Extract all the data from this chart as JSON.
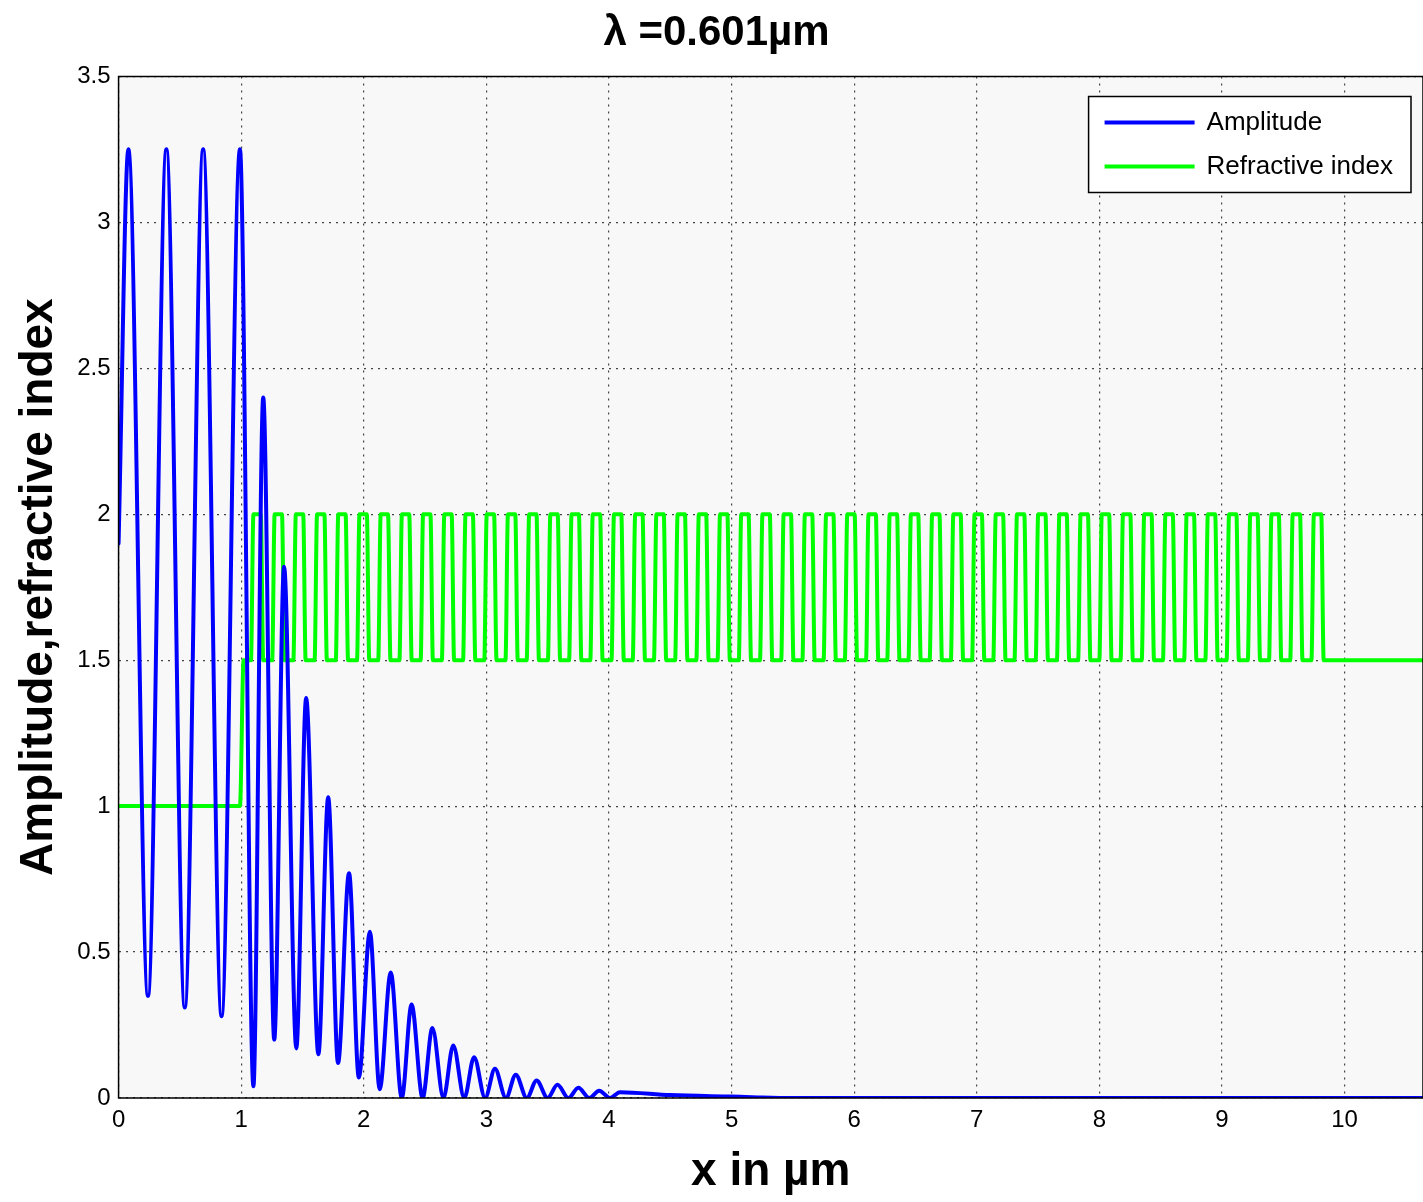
{
  "chart_data": {
    "type": "line",
    "title": "λ =0.601µm",
    "xlabel": "x in µm",
    "ylabel": "Amplitude,refractive index",
    "xlim": [
      0,
      10.64
    ],
    "xticks": [
      0,
      1,
      2,
      3,
      4,
      5,
      6,
      7,
      8,
      9,
      10
    ],
    "ylim": [
      0,
      3.5
    ],
    "yticks": [
      0,
      0.5,
      1,
      1.5,
      2,
      2.5,
      3,
      3.5
    ],
    "grid": true,
    "legend": "top right",
    "line_style": "solid",
    "marker": "none",
    "series": [
      {
        "name": "Amplitude",
        "color": "#0000ff",
        "x": [
          0,
          0.08,
          0.24,
          0.39,
          0.54,
          0.69,
          0.84,
          0.99,
          1.1,
          1.18,
          1.27,
          1.35,
          1.45,
          1.53,
          1.63,
          1.71,
          1.79,
          1.88,
          1.96,
          2.05,
          2.13,
          2.22,
          2.31,
          2.39,
          2.48,
          2.56,
          2.65,
          2.73,
          2.82,
          2.9,
          2.99,
          3.07,
          3.16,
          3.24,
          3.33,
          3.41,
          3.5,
          3.58,
          3.67,
          3.75,
          3.84,
          3.92,
          4.01,
          4.09,
          4.5,
          5,
          5.5,
          10.64
        ],
        "values": [
          1.9,
          3.25,
          0.35,
          3.25,
          0.31,
          3.25,
          0.28,
          3.25,
          0.04,
          2.4,
          0.2,
          1.82,
          0.17,
          1.37,
          0.15,
          1.03,
          0.12,
          0.77,
          0.07,
          0.57,
          0.03,
          0.43,
          0,
          0.32,
          0,
          0.24,
          0,
          0.18,
          0,
          0.14,
          0,
          0.1,
          0,
          0.08,
          0,
          0.06,
          0,
          0.045,
          0,
          0.035,
          0,
          0.025,
          0,
          0.02,
          0.01,
          0.005,
          0,
          0
        ]
      },
      {
        "name": "Refractive index",
        "color": "#00ff00",
        "x": [
          0,
          0.99,
          1.02,
          1.08,
          1.1,
          1.16,
          1.18,
          1.253,
          1.273,
          1.333,
          1.353,
          1.426,
          1.446,
          1.506,
          1.526,
          1.599,
          1.619,
          1.679,
          1.699,
          1.772,
          1.792,
          1.852,
          1.872,
          1.945,
          1.965,
          2.025,
          2.045,
          2.118,
          2.138,
          2.198,
          2.218,
          2.291,
          2.311,
          2.371,
          2.391,
          2.464,
          2.484,
          2.544,
          2.564,
          2.637,
          2.657,
          2.717,
          2.737,
          2.81,
          2.83,
          2.89,
          2.91,
          2.983,
          3.003,
          3.063,
          3.083,
          3.156,
          3.176,
          3.236,
          3.256,
          3.329,
          3.349,
          3.409,
          3.429,
          3.502,
          3.522,
          3.582,
          3.602,
          3.675,
          3.695,
          3.755,
          3.775,
          3.848,
          3.868,
          3.928,
          3.948,
          4.021,
          4.041,
          4.101,
          4.121,
          4.194,
          4.214,
          4.274,
          4.294,
          4.367,
          4.387,
          4.447,
          4.467,
          4.54,
          4.56,
          4.62,
          4.64,
          4.713,
          4.733,
          4.793,
          4.813,
          4.886,
          4.906,
          4.966,
          4.986,
          5.059,
          5.079,
          5.139,
          5.159,
          5.232,
          5.252,
          5.312,
          5.332,
          5.405,
          5.425,
          5.485,
          5.505,
          5.578,
          5.598,
          5.658,
          5.678,
          5.751,
          5.771,
          5.831,
          5.851,
          5.924,
          5.944,
          6.004,
          6.024,
          6.097,
          6.117,
          6.177,
          6.197,
          6.27,
          6.29,
          6.35,
          6.37,
          6.443,
          6.463,
          6.523,
          6.543,
          6.616,
          6.636,
          6.696,
          6.716,
          6.789,
          6.809,
          6.869,
          6.889,
          6.962,
          6.982,
          7.042,
          7.062,
          7.135,
          7.155,
          7.215,
          7.235,
          7.308,
          7.328,
          7.388,
          7.408,
          7.481,
          7.501,
          7.561,
          7.581,
          7.654,
          7.674,
          7.734,
          7.754,
          7.827,
          7.847,
          7.907,
          7.927,
          8,
          8.02,
          8.08,
          8.1,
          8.173,
          8.193,
          8.253,
          8.273,
          8.346,
          8.366,
          8.426,
          8.446,
          8.519,
          8.539,
          8.599,
          8.619,
          8.692,
          8.712,
          8.772,
          8.792,
          8.865,
          8.885,
          8.945,
          8.965,
          9.038,
          9.058,
          9.118,
          9.138,
          9.211,
          9.231,
          9.291,
          9.311,
          9.384,
          9.404,
          9.464,
          9.484,
          9.557,
          9.577,
          9.637,
          9.657,
          9.73,
          9.75,
          9.81,
          9.83,
          10.64
        ],
        "values": [
          1,
          1,
          1.5,
          1.5,
          2,
          2,
          1.5,
          1.5,
          2,
          2,
          1.5,
          1.5,
          2,
          2,
          1.5,
          1.5,
          2,
          2,
          1.5,
          1.5,
          2,
          2,
          1.5,
          1.5,
          2,
          2,
          1.5,
          1.5,
          2,
          2,
          1.5,
          1.5,
          2,
          2,
          1.5,
          1.5,
          2,
          2,
          1.5,
          1.5,
          2,
          2,
          1.5,
          1.5,
          2,
          2,
          1.5,
          1.5,
          2,
          2,
          1.5,
          1.5,
          2,
          2,
          1.5,
          1.5,
          2,
          2,
          1.5,
          1.5,
          2,
          2,
          1.5,
          1.5,
          2,
          2,
          1.5,
          1.5,
          2,
          2,
          1.5,
          1.5,
          2,
          2,
          1.5,
          1.5,
          2,
          2,
          1.5,
          1.5,
          2,
          2,
          1.5,
          1.5,
          2,
          2,
          1.5,
          1.5,
          2,
          2,
          1.5,
          1.5,
          2,
          2,
          1.5,
          1.5,
          2,
          2,
          1.5,
          1.5,
          2,
          2,
          1.5,
          1.5,
          2,
          2,
          1.5,
          1.5,
          2,
          2,
          1.5,
          1.5,
          2,
          2,
          1.5,
          1.5,
          2,
          2,
          1.5,
          1.5,
          2,
          2,
          1.5,
          1.5,
          2,
          2,
          1.5,
          1.5,
          2,
          2,
          1.5,
          1.5,
          2,
          2,
          1.5,
          1.5,
          2,
          2,
          1.5,
          1.5,
          2,
          2,
          1.5,
          1.5,
          2,
          2,
          1.5,
          1.5,
          2,
          2,
          1.5,
          1.5,
          2,
          2,
          1.5,
          1.5,
          2,
          2,
          1.5,
          1.5,
          2,
          2,
          1.5,
          1.5,
          2,
          2,
          1.5,
          1.5,
          2,
          2,
          1.5,
          1.5,
          2,
          2,
          1.5,
          1.5,
          2,
          2,
          1.5,
          1.5,
          2,
          2,
          1.5,
          1.5,
          2,
          2,
          1.5,
          1.5,
          2,
          2,
          1.5,
          1.5,
          2,
          2,
          1.5,
          1.5,
          2,
          2,
          1.5,
          1.5,
          2,
          2,
          1.5,
          1.5,
          2,
          2,
          1.5,
          1.5
        ]
      }
    ]
  }
}
